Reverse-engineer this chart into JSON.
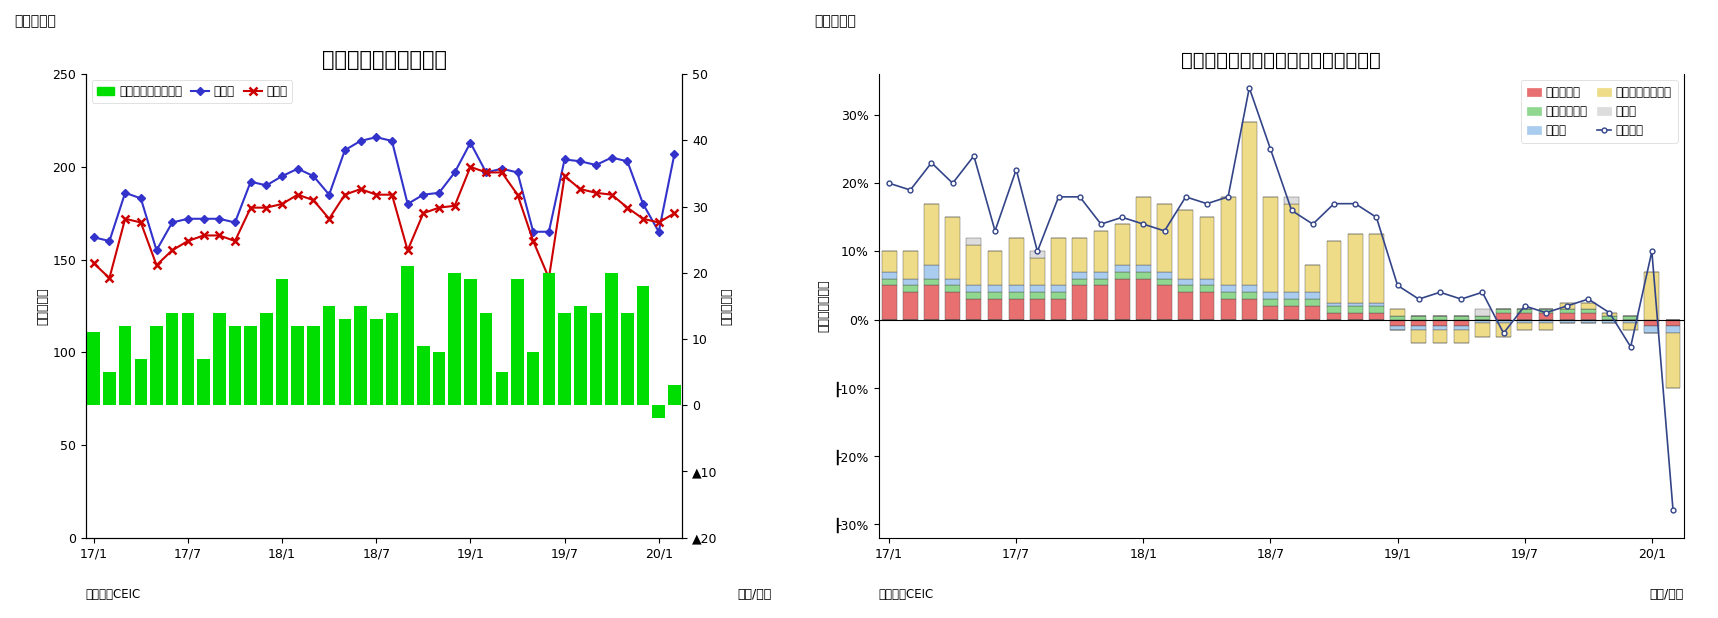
{
  "chart7": {
    "title": "マレーシア　貳易収支",
    "suptitle": "（図表７）",
    "ylabel_left": "（億ドル）",
    "ylabel_right": "（億ドル）",
    "xlabel": "（年/月）",
    "source": "（資料）CEIC",
    "ylim_left_bottom": 0,
    "ylim_left_top": 250,
    "ylim_right_bottom": -20,
    "ylim_right_top": 50,
    "yticks_left": [
      0,
      50,
      100,
      150,
      200,
      250
    ],
    "yticks_right": [
      -20,
      -10,
      0,
      10,
      20,
      30,
      40,
      50
    ],
    "xtick_positions": [
      0,
      6,
      12,
      18,
      24,
      30,
      36
    ],
    "xtick_labels": [
      "17/1",
      "17/7",
      "18/1",
      "18/7",
      "19/1",
      "19/7",
      "20/1"
    ],
    "bar_color": "#00dd00",
    "line_export_color": "#3333cc",
    "line_import_color": "#cc0000",
    "legend_bar": "貳易収支（右目盛）",
    "legend_export": "輸出額",
    "legend_import": "輸入額",
    "bar_values": [
      11,
      5,
      12,
      7,
      12,
      14,
      14,
      7,
      14,
      12,
      12,
      14,
      19,
      12,
      12,
      15,
      13,
      15,
      13,
      14,
      21,
      9,
      8,
      20,
      19,
      14,
      5,
      19,
      8,
      20,
      14,
      15,
      14,
      20,
      14,
      18,
      -2,
      3
    ],
    "export_values": [
      162,
      160,
      186,
      183,
      155,
      170,
      172,
      172,
      172,
      170,
      192,
      190,
      195,
      199,
      195,
      185,
      209,
      214,
      216,
      214,
      180,
      185,
      186,
      197,
      213,
      197,
      199,
      197,
      165,
      165,
      204,
      203,
      201,
      205,
      203,
      180,
      165,
      207
    ],
    "import_values": [
      148,
      140,
      172,
      170,
      147,
      155,
      160,
      163,
      163,
      160,
      178,
      178,
      180,
      185,
      182,
      172,
      185,
      188,
      185,
      185,
      155,
      175,
      178,
      179,
      200,
      197,
      197,
      185,
      160,
      140,
      195,
      188,
      186,
      185,
      178,
      172,
      170,
      175
    ]
  },
  "chart8": {
    "title": "マレーシア　輸出の伸び率（品目別）",
    "suptitle": "（図表８）",
    "ylabel_left": "（前年同月比）",
    "xlabel": "（年/月）",
    "source": "（資料）CEIC",
    "ylim_bottom": -0.32,
    "ylim_top": 0.36,
    "yticks": [
      -0.3,
      -0.2,
      -0.1,
      0.0,
      0.1,
      0.2,
      0.3
    ],
    "ytick_labels": [
      "┠30%",
      "┠20%",
      "┠10%",
      "0%",
      "10%",
      "20%",
      "30%"
    ],
    "xtick_positions": [
      0,
      6,
      12,
      18,
      24,
      30,
      36
    ],
    "xtick_labels": [
      "17/1",
      "17/7",
      "18/1",
      "18/7",
      "19/1",
      "19/7",
      "20/1"
    ],
    "color_mineral": "#e87070",
    "color_animal": "#90d890",
    "color_mfg": "#aaccee",
    "color_machine": "#eedc88",
    "color_other": "#dddddd",
    "color_total_line": "#334488",
    "legend_mineral": "鉱物性燃料",
    "legend_animal": "動植物性油脂",
    "legend_mfg": "製造品",
    "legend_machine": "機械・輸送用機器",
    "legend_other": "その他",
    "legend_total": "輸出合計",
    "mineral_fuel": [
      0.05,
      0.04,
      0.05,
      0.04,
      0.03,
      0.03,
      0.03,
      0.03,
      0.03,
      0.05,
      0.05,
      0.06,
      0.06,
      0.05,
      0.04,
      0.04,
      0.03,
      0.03,
      0.02,
      0.02,
      0.02,
      0.01,
      0.01,
      0.01,
      -0.01,
      -0.01,
      -0.01,
      -0.01,
      0.0,
      0.01,
      0.01,
      0.01,
      0.01,
      0.01,
      0.0,
      0.0,
      -0.01,
      -0.01
    ],
    "animal_fat": [
      0.01,
      0.01,
      0.01,
      0.01,
      0.01,
      0.01,
      0.01,
      0.01,
      0.01,
      0.01,
      0.01,
      0.01,
      0.01,
      0.01,
      0.01,
      0.01,
      0.01,
      0.01,
      0.01,
      0.01,
      0.01,
      0.01,
      0.01,
      0.01,
      0.005,
      0.005,
      0.005,
      0.005,
      0.005,
      0.005,
      0.005,
      0.005,
      0.005,
      0.005,
      0.005,
      0.005,
      0.0,
      0.0
    ],
    "manufactured": [
      0.01,
      0.01,
      0.02,
      0.01,
      0.01,
      0.01,
      0.01,
      0.01,
      0.01,
      0.01,
      0.01,
      0.01,
      0.01,
      0.01,
      0.01,
      0.01,
      0.01,
      0.01,
      0.01,
      0.01,
      0.01,
      0.005,
      0.005,
      0.005,
      -0.005,
      -0.005,
      -0.005,
      -0.005,
      -0.005,
      -0.005,
      -0.005,
      -0.005,
      -0.005,
      -0.005,
      -0.005,
      -0.005,
      -0.01,
      -0.01
    ],
    "machinery": [
      0.03,
      0.04,
      0.09,
      0.09,
      0.06,
      0.05,
      0.07,
      0.04,
      0.07,
      0.05,
      0.06,
      0.06,
      0.1,
      0.1,
      0.1,
      0.09,
      0.13,
      0.24,
      0.14,
      0.13,
      0.04,
      0.09,
      0.1,
      0.1,
      0.01,
      -0.02,
      -0.02,
      -0.02,
      -0.02,
      -0.02,
      -0.01,
      -0.01,
      0.01,
      0.01,
      0.005,
      -0.01,
      0.07,
      -0.08
    ],
    "other": [
      0.0,
      0.0,
      0.0,
      0.0,
      0.01,
      0.0,
      0.0,
      0.01,
      0.0,
      0.0,
      0.0,
      0.0,
      0.0,
      0.0,
      0.0,
      0.0,
      0.0,
      0.0,
      0.0,
      0.01,
      0.0,
      0.0,
      0.0,
      0.0,
      0.0,
      0.0,
      0.0,
      0.0,
      0.01,
      0.0,
      0.0,
      0.0,
      0.0,
      0.0,
      0.0,
      0.0,
      0.0,
      0.0
    ],
    "total_line": [
      0.2,
      0.19,
      0.23,
      0.2,
      0.24,
      0.13,
      0.22,
      0.1,
      0.18,
      0.18,
      0.14,
      0.15,
      0.14,
      0.13,
      0.18,
      0.17,
      0.18,
      0.34,
      0.25,
      0.16,
      0.14,
      0.17,
      0.17,
      0.15,
      0.05,
      0.03,
      0.04,
      0.03,
      0.04,
      -0.02,
      0.02,
      0.01,
      0.02,
      0.03,
      0.01,
      -0.04,
      0.1,
      -0.28
    ]
  }
}
